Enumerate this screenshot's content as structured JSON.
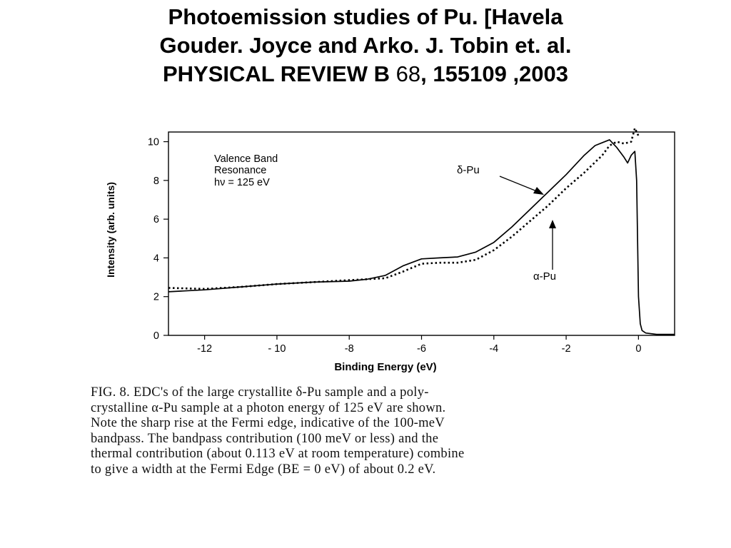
{
  "title": {
    "line1": "Photoemission studies of Pu. [Havela",
    "line2": "Gouder. Joyce and Arko. J. Tobin et. al.",
    "line3_prefix": "PHYSICAL REVIEW B ",
    "line3_volume": "68",
    "line3_suffix": ", 155109 ,2003"
  },
  "chart_data": {
    "type": "line",
    "xlabel": "Binding Energy (eV)",
    "ylabel": "Intensity (arb. units)",
    "xlim": [
      -13,
      1
    ],
    "ylim": [
      0,
      10.5
    ],
    "x_ticks": [
      -12,
      -10,
      -8,
      -6,
      -4,
      -2,
      0
    ],
    "x_tick_labels": [
      "-12",
      "- 10",
      "-8",
      "-6",
      "-4",
      "-2",
      "0"
    ],
    "y_ticks": [
      0,
      2,
      4,
      6,
      8,
      10
    ],
    "y_tick_labels": [
      "0",
      "2",
      "4",
      "6",
      "8",
      "10"
    ],
    "grid": false,
    "annotation_lines": [
      "Valence Band",
      "Resonance",
      "hν = 125 eV"
    ],
    "series": [
      {
        "name": "δ-Pu",
        "style": "solid",
        "x": [
          -13,
          -12,
          -11,
          -10,
          -9,
          -8,
          -7.5,
          -7,
          -6.5,
          -6,
          -5.5,
          -5,
          -4.5,
          -4,
          -3.5,
          -3,
          -2.5,
          -2,
          -1.5,
          -1.2,
          -1,
          -0.8,
          -0.6,
          -0.4,
          -0.3,
          -0.2,
          -0.1,
          -0.05,
          0,
          0.05,
          0.1,
          0.2,
          0.5,
          1
        ],
        "y": [
          2.25,
          2.35,
          2.5,
          2.65,
          2.75,
          2.8,
          2.9,
          3.1,
          3.6,
          3.95,
          4.0,
          4.05,
          4.3,
          4.8,
          5.6,
          6.5,
          7.4,
          8.3,
          9.3,
          9.8,
          9.95,
          10.1,
          9.7,
          9.2,
          8.9,
          9.3,
          9.5,
          8.0,
          2.0,
          0.6,
          0.25,
          0.12,
          0.05,
          0.05
        ]
      },
      {
        "name": "α-Pu",
        "style": "dotted",
        "x": [
          -13,
          -12,
          -11,
          -10,
          -9,
          -8,
          -7.5,
          -7,
          -6.5,
          -6,
          -5.5,
          -5,
          -4.5,
          -4,
          -3.5,
          -3,
          -2.5,
          -2,
          -1.5,
          -1,
          -0.8,
          -0.6,
          -0.4,
          -0.2,
          -0.1,
          0
        ],
        "y": [
          2.45,
          2.4,
          2.5,
          2.65,
          2.75,
          2.85,
          2.9,
          2.95,
          3.3,
          3.7,
          3.75,
          3.75,
          3.9,
          4.4,
          5.1,
          5.9,
          6.7,
          7.6,
          8.4,
          9.3,
          9.8,
          10.0,
          9.9,
          10.0,
          10.7,
          10.3
        ]
      }
    ]
  },
  "caption_lines": [
    "FIG. 8.  EDC's of the large crystallite δ-Pu sample and a poly-",
    "crystalline α-Pu sample at a photon energy of 125 eV are shown.",
    "Note the sharp rise at the Fermi edge, indicative of the 100-meV",
    "bandpass.  The bandpass contribution (100 meV or less) and the",
    "thermal contribution (about 0.113 eV at room temperature) combine",
    "to give a width at the Fermi Edge (BE = 0 eV)  of about 0.2 eV."
  ]
}
